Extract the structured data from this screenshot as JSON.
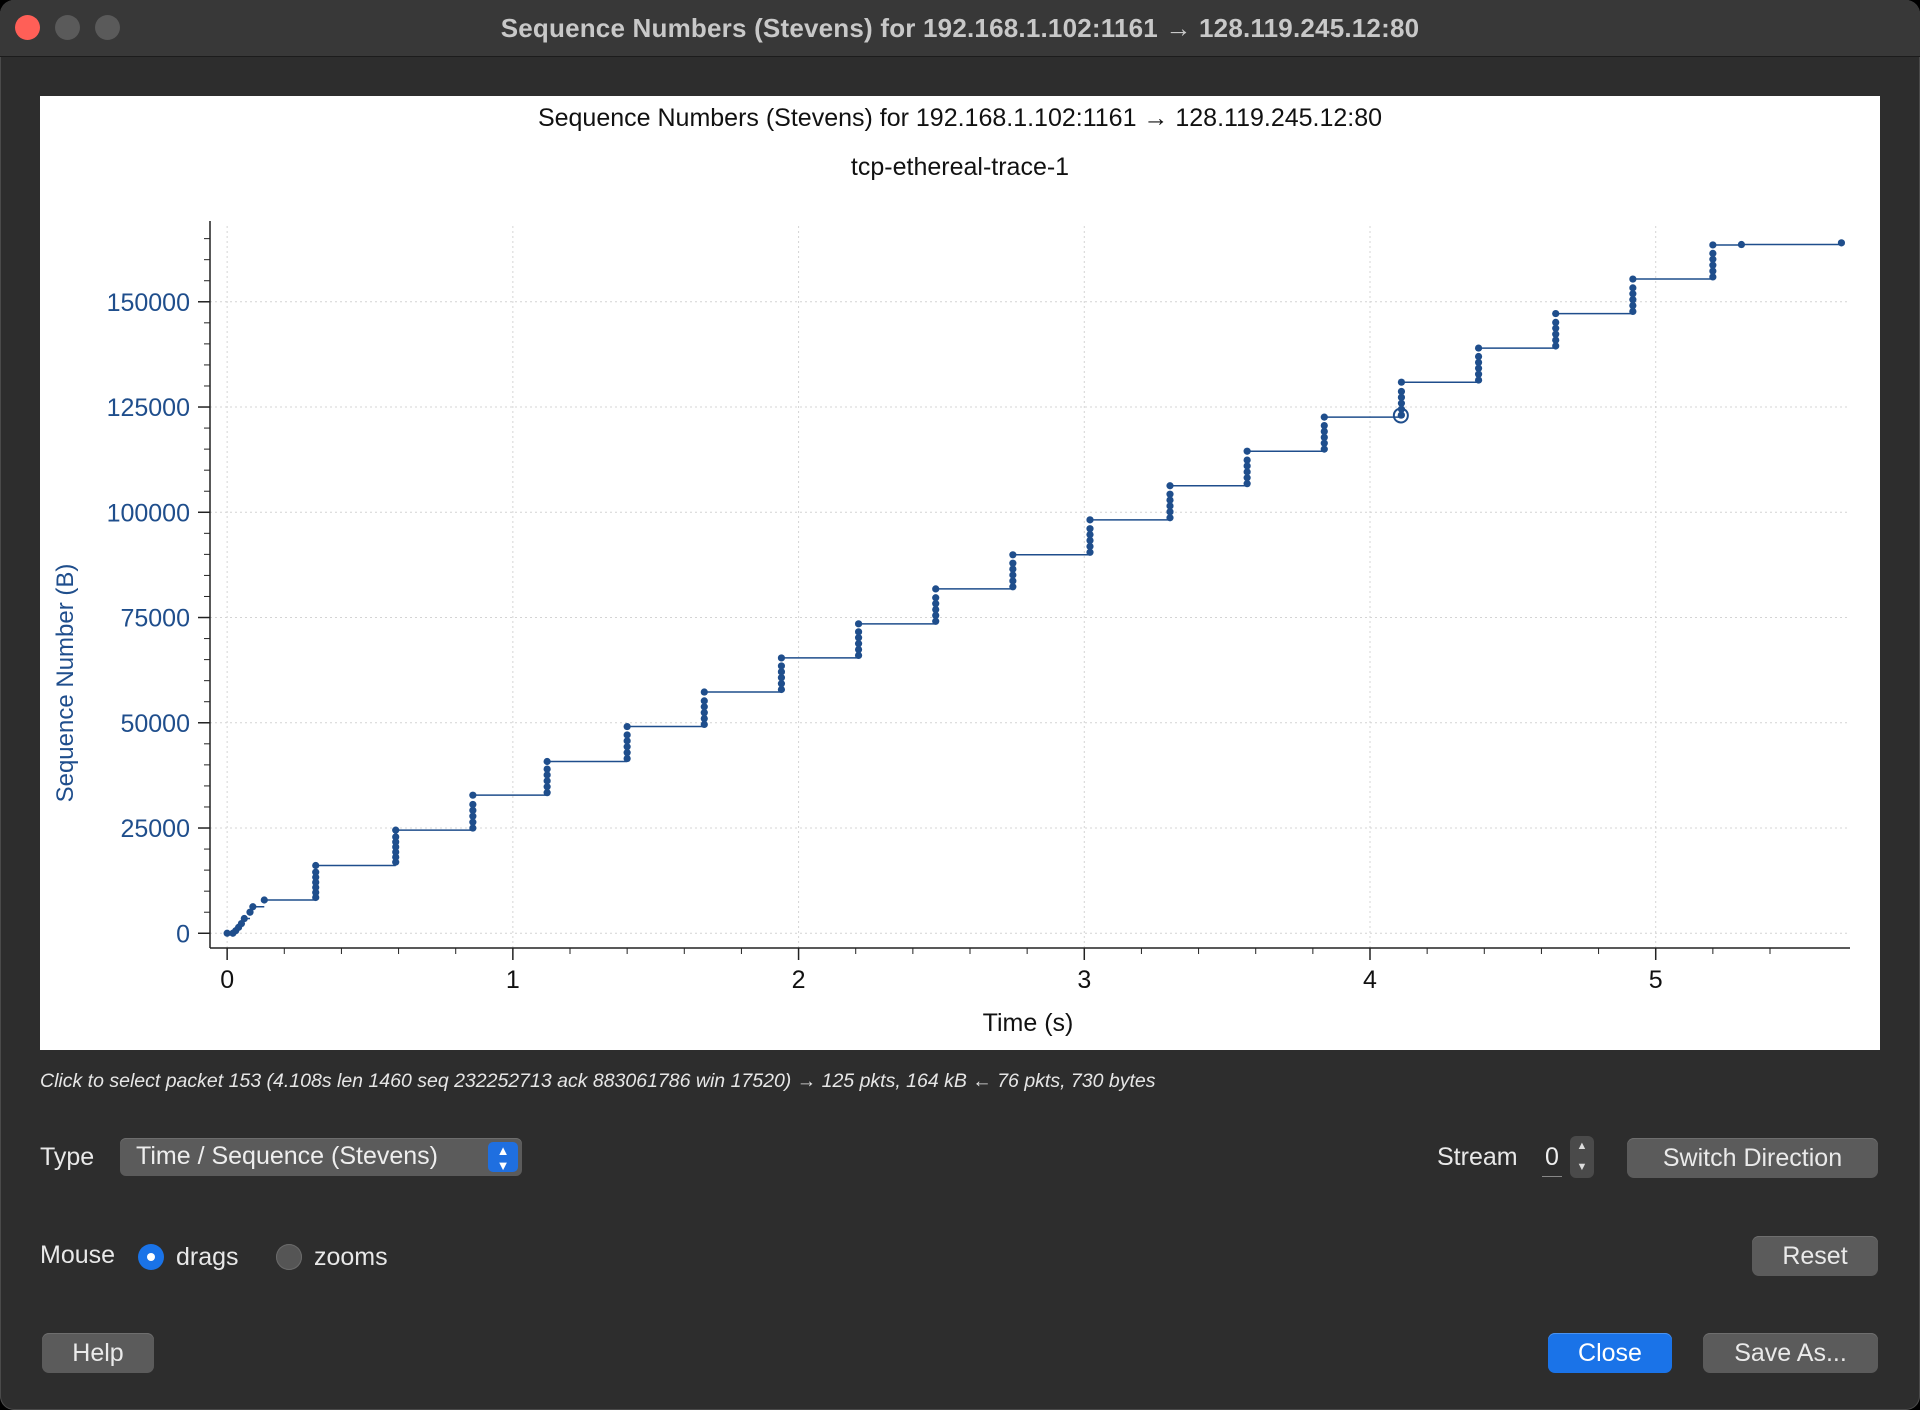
{
  "window": {
    "title": "Sequence Numbers (Stevens) for 192.168.1.102:1161 → 128.119.245.12:80"
  },
  "chart_data": {
    "type": "scatter",
    "title": "Sequence Numbers (Stevens) for 192.168.1.102:1161 → 128.119.245.12:80",
    "subtitle": "tcp-ethereal-trace-1",
    "xlabel": "Time (s)",
    "ylabel": "Sequence Number (B)",
    "xlim": [
      -0.06,
      5.68
    ],
    "ylim": [
      -3500,
      168000
    ],
    "xticks": [
      0,
      1,
      2,
      3,
      4,
      5
    ],
    "xtick_labels": [
      "0",
      "1",
      "2",
      "3",
      "4",
      "5"
    ],
    "yticks": [
      0,
      25000,
      50000,
      75000,
      100000,
      125000,
      150000
    ],
    "ytick_labels": [
      "0",
      "25000",
      "50000",
      "75000",
      "100000",
      "125000",
      "150000"
    ],
    "grid": true,
    "color": "#1f4e8c",
    "selected_point": {
      "x": 4.108,
      "y": 123000
    },
    "series": [
      {
        "points": [
          [
            0.0,
            0
          ],
          [
            0.02,
            0
          ],
          [
            0.03,
            600
          ],
          [
            0.04,
            1400
          ],
          [
            0.05,
            2300
          ],
          [
            0.06,
            3500
          ],
          [
            0.08,
            5000
          ],
          [
            0.09,
            6300
          ],
          [
            0.13,
            7900
          ],
          [
            0.31,
            8500
          ],
          [
            0.31,
            9700
          ],
          [
            0.31,
            10900
          ],
          [
            0.31,
            12100
          ],
          [
            0.31,
            13300
          ],
          [
            0.31,
            14500
          ],
          [
            0.31,
            16100
          ],
          [
            0.59,
            16900
          ],
          [
            0.59,
            18100
          ],
          [
            0.59,
            19300
          ],
          [
            0.59,
            20500
          ],
          [
            0.59,
            21700
          ],
          [
            0.59,
            22900
          ],
          [
            0.59,
            24500
          ],
          [
            0.86,
            25000
          ],
          [
            0.86,
            26400
          ],
          [
            0.86,
            27800
          ],
          [
            0.86,
            29200
          ],
          [
            0.86,
            30600
          ],
          [
            0.86,
            32800
          ],
          [
            1.12,
            33400
          ],
          [
            1.12,
            34800
          ],
          [
            1.12,
            36200
          ],
          [
            1.12,
            37600
          ],
          [
            1.12,
            39000
          ],
          [
            1.12,
            40800
          ],
          [
            1.4,
            41500
          ],
          [
            1.4,
            42900
          ],
          [
            1.4,
            44300
          ],
          [
            1.4,
            45700
          ],
          [
            1.4,
            47100
          ],
          [
            1.4,
            49100
          ],
          [
            1.67,
            49600
          ],
          [
            1.67,
            51000
          ],
          [
            1.67,
            52400
          ],
          [
            1.67,
            53800
          ],
          [
            1.67,
            55200
          ],
          [
            1.67,
            57300
          ],
          [
            1.94,
            57900
          ],
          [
            1.94,
            59300
          ],
          [
            1.94,
            60700
          ],
          [
            1.94,
            62100
          ],
          [
            1.94,
            63500
          ],
          [
            1.94,
            65400
          ],
          [
            2.21,
            66000
          ],
          [
            2.21,
            67400
          ],
          [
            2.21,
            68800
          ],
          [
            2.21,
            70200
          ],
          [
            2.21,
            71600
          ],
          [
            2.21,
            73500
          ],
          [
            2.48,
            74100
          ],
          [
            2.48,
            75500
          ],
          [
            2.48,
            76900
          ],
          [
            2.48,
            78300
          ],
          [
            2.48,
            79700
          ],
          [
            2.48,
            81800
          ],
          [
            2.75,
            82300
          ],
          [
            2.75,
            83700
          ],
          [
            2.75,
            85100
          ],
          [
            2.75,
            86500
          ],
          [
            2.75,
            87900
          ],
          [
            2.75,
            89900
          ],
          [
            3.02,
            90500
          ],
          [
            3.02,
            91900
          ],
          [
            3.02,
            93300
          ],
          [
            3.02,
            94700
          ],
          [
            3.02,
            96100
          ],
          [
            3.02,
            98200
          ],
          [
            3.3,
            98700
          ],
          [
            3.3,
            100100
          ],
          [
            3.3,
            101500
          ],
          [
            3.3,
            102900
          ],
          [
            3.3,
            104300
          ],
          [
            3.3,
            106300
          ],
          [
            3.57,
            106800
          ],
          [
            3.57,
            108200
          ],
          [
            3.57,
            109600
          ],
          [
            3.57,
            111000
          ],
          [
            3.57,
            112400
          ],
          [
            3.57,
            114500
          ],
          [
            3.84,
            115000
          ],
          [
            3.84,
            116400
          ],
          [
            3.84,
            117800
          ],
          [
            3.84,
            119200
          ],
          [
            3.84,
            120600
          ],
          [
            3.84,
            122600
          ],
          [
            4.11,
            123100
          ],
          [
            4.11,
            124500
          ],
          [
            4.11,
            125900
          ],
          [
            4.11,
            127300
          ],
          [
            4.11,
            128700
          ],
          [
            4.11,
            130900
          ],
          [
            4.38,
            131400
          ],
          [
            4.38,
            132800
          ],
          [
            4.38,
            134200
          ],
          [
            4.38,
            135600
          ],
          [
            4.38,
            137000
          ],
          [
            4.38,
            139000
          ],
          [
            4.65,
            139500
          ],
          [
            4.65,
            140900
          ],
          [
            4.65,
            142300
          ],
          [
            4.65,
            143700
          ],
          [
            4.65,
            145100
          ],
          [
            4.65,
            147200
          ],
          [
            4.92,
            147700
          ],
          [
            4.92,
            149100
          ],
          [
            4.92,
            150500
          ],
          [
            4.92,
            151900
          ],
          [
            4.92,
            153300
          ],
          [
            4.92,
            155400
          ],
          [
            5.2,
            155900
          ],
          [
            5.2,
            157300
          ],
          [
            5.2,
            158700
          ],
          [
            5.2,
            160100
          ],
          [
            5.2,
            161500
          ],
          [
            5.2,
            163500
          ],
          [
            5.3,
            163600
          ],
          [
            5.65,
            164000
          ]
        ]
      }
    ]
  },
  "status": "Click to select packet 153 (4.108s len 1460 seq 232252713 ack 883061786 win 17520) → 125 pkts, 164 kB ← 76 pkts, 730 bytes",
  "controls": {
    "type_label": "Type",
    "type_value": "Time / Sequence (Stevens)",
    "stream_label": "Stream",
    "stream_value": "0",
    "switch_direction": "Switch Direction",
    "mouse_label": "Mouse",
    "mouse_drags": "drags",
    "mouse_zooms": "zooms",
    "mouse_mode": "drags",
    "reset": "Reset",
    "help": "Help",
    "close": "Close",
    "save_as": "Save As..."
  },
  "colors": {
    "window_bg": "#2d2d2d",
    "accent": "#1a73e8",
    "series": "#1f4e8c"
  }
}
